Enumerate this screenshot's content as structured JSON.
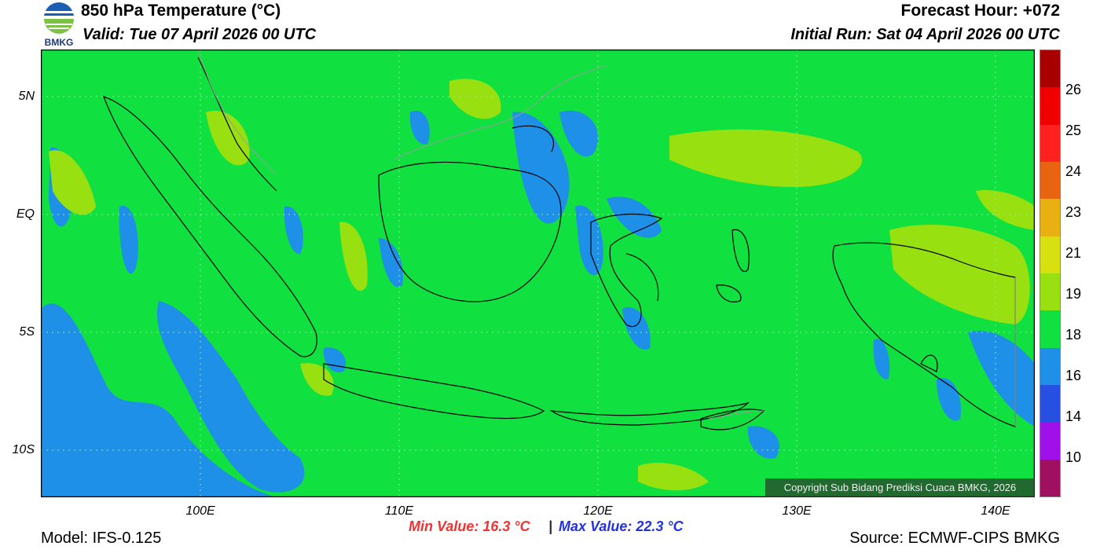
{
  "header": {
    "logo_text": "BMKG",
    "title": "850 hPa Temperature (°C)",
    "valid": "Valid: Tue 07 April 2026 00 UTC",
    "forecast_hour": "Forecast Hour: +072",
    "initial_run": "Initial Run: Sat 04 April 2026 00 UTC"
  },
  "map": {
    "lat_labels": [
      "5N",
      "EQ",
      "5S",
      "10S"
    ],
    "lon_labels": [
      "100E",
      "110E",
      "120E",
      "130E",
      "140E"
    ],
    "copyright": "Copyright Sub Bidang Prediksi Cuaca BMKG, 2026"
  },
  "colorbar": {
    "labels": [
      "26",
      "25",
      "24",
      "23",
      "21",
      "19",
      "18",
      "16",
      "14",
      "10"
    ],
    "colors": [
      "#a80000",
      "#f00000",
      "#ff2020",
      "#e86410",
      "#e8b010",
      "#d8e010",
      "#98e010",
      "#10e040",
      "#1e90e8",
      "#2850e0",
      "#a010e8",
      "#a01060"
    ]
  },
  "stats": {
    "min_value": "Min Value: 16.3 °C",
    "separator": "|",
    "max_value": "Max Value: 22.3 °C"
  },
  "footer": {
    "model": "Model: IFS-0.125",
    "source": "Source: ECMWF-CIPS BMKG"
  }
}
